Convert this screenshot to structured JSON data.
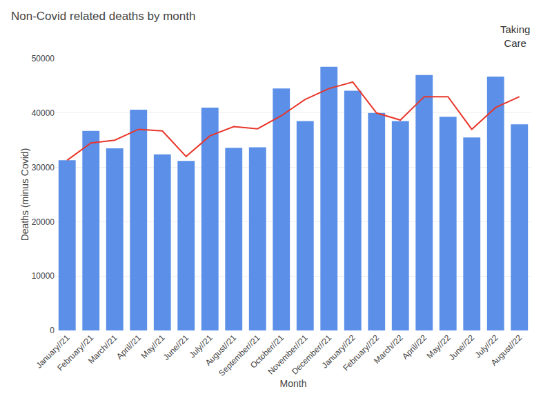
{
  "chart_data": {
    "type": "bar",
    "title": "Non-Covid related deaths by month",
    "xlabel": "Month",
    "ylabel": "Deaths (minus Covid)",
    "categories": [
      "January//21",
      "February//21",
      "March//21",
      "April//21",
      "May//21",
      "June//21",
      "July//21",
      "August//21",
      "September//21",
      "October//21",
      "November//21",
      "December//21",
      "January//22",
      "February//22",
      "March//22",
      "April//22",
      "May//22",
      "June//22",
      "July//22",
      "August//22"
    ],
    "series": [
      {
        "type": "bar",
        "color": "#5B8FE8",
        "values": [
          31300,
          36700,
          33500,
          40600,
          32400,
          31200,
          41000,
          33600,
          33700,
          44500,
          38500,
          48500,
          44100,
          40000,
          38500,
          47000,
          39300,
          35500,
          46700,
          37900
        ]
      },
      {
        "type": "line",
        "color": "#E8362A",
        "values": [
          31300,
          34500,
          35000,
          37000,
          36700,
          32000,
          35800,
          37500,
          37100,
          39500,
          42500,
          44500,
          45700,
          40000,
          38700,
          43000,
          43000,
          37000,
          41000,
          43000
        ]
      }
    ],
    "ylim": [
      0,
      50000
    ],
    "yticks": [
      0,
      10000,
      20000,
      30000,
      40000,
      50000
    ],
    "grid": true,
    "annotations": [
      "Taking\nCare"
    ]
  }
}
